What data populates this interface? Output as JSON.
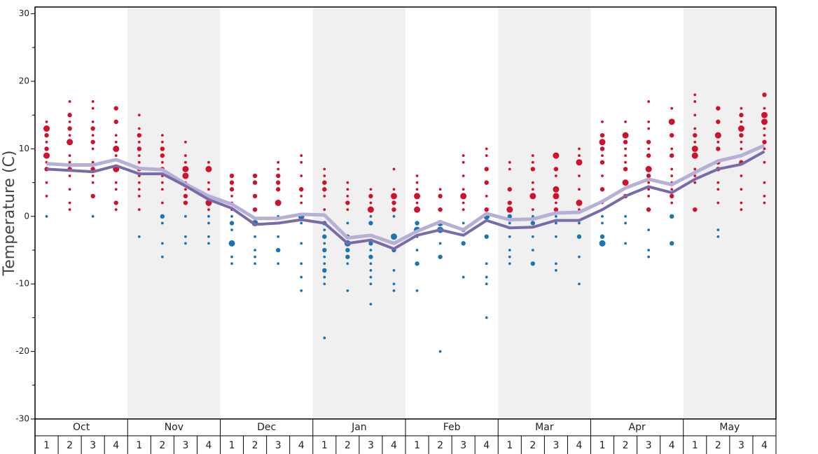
{
  "chart_data": {
    "type": "line",
    "y_label": "Temperature (C)",
    "ylim": [
      -30,
      31
    ],
    "yticks": [
      -30,
      -20,
      -10,
      0,
      10,
      20,
      30
    ],
    "yminor_ticks": [
      -25,
      -15,
      -5,
      5,
      15,
      25
    ],
    "months": [
      "Oct",
      "Nov",
      "Dec",
      "Jan",
      "Feb",
      "Mar",
      "Apr",
      "May"
    ],
    "weeks": [
      1,
      2,
      3,
      4
    ],
    "shaded_months": [
      "Nov",
      "Jan",
      "Mar",
      "May"
    ],
    "shade_color": "#f0f0f0",
    "above_color": "#d0112b",
    "below_color": "#1a75b0",
    "color_threshold": 0,
    "series": [
      {
        "color": "#b7b0d6",
        "values": [
          7.8,
          7.6,
          7.6,
          8.4,
          7.1,
          6.9,
          4.8,
          3.0,
          1.8,
          -0.3,
          -0.3,
          0.3,
          0.2,
          -3.2,
          -2.8,
          -4.0,
          -2.2,
          -0.8,
          -2.0,
          0.4,
          -0.5,
          -0.4,
          0.5,
          0.6,
          2.2,
          4.2,
          5.5,
          4.7,
          6.5,
          8.2,
          9.0,
          10.5
        ]
      },
      {
        "color": "#7a6aa8",
        "values": [
          7.0,
          6.8,
          6.6,
          7.5,
          6.3,
          6.3,
          4.5,
          2.5,
          1.2,
          -1.2,
          -1.0,
          -0.5,
          -1.0,
          -4.0,
          -3.5,
          -4.8,
          -2.8,
          -2.0,
          -2.8,
          -0.6,
          -1.7,
          -1.6,
          -0.6,
          -0.6,
          1.0,
          3.0,
          4.4,
          3.5,
          5.5,
          7.0,
          7.7,
          9.6
        ]
      }
    ],
    "dots": [
      {
        "temps": [
          14,
          13,
          12,
          11,
          10,
          9,
          8,
          7,
          5,
          3,
          0
        ],
        "counts": [
          1,
          3,
          2,
          1,
          2,
          3,
          1,
          2,
          1,
          1,
          1
        ]
      },
      {
        "temps": [
          17,
          15,
          14,
          13,
          12,
          11,
          9,
          8,
          7,
          6,
          4,
          2,
          1
        ],
        "counts": [
          1,
          2,
          1,
          2,
          1,
          3,
          1,
          1,
          2,
          1,
          1,
          1,
          1
        ]
      },
      {
        "temps": [
          17,
          16,
          14,
          13,
          12,
          11,
          10,
          8,
          7,
          6,
          5,
          3,
          0
        ],
        "counts": [
          1,
          1,
          1,
          2,
          1,
          2,
          1,
          1,
          2,
          1,
          1,
          2,
          1
        ]
      },
      {
        "temps": [
          16,
          14,
          12,
          11,
          10,
          9,
          7,
          5,
          4,
          2,
          1
        ],
        "counts": [
          2,
          2,
          1,
          1,
          3,
          1,
          3,
          1,
          1,
          2,
          1
        ]
      },
      {
        "temps": [
          15,
          13,
          12,
          11,
          10,
          9,
          8,
          7,
          6,
          5,
          4,
          3,
          1,
          -3
        ],
        "counts": [
          1,
          1,
          2,
          1,
          2,
          1,
          1,
          2,
          1,
          1,
          1,
          1,
          1,
          1
        ]
      },
      {
        "temps": [
          12,
          11,
          10,
          9,
          8,
          7,
          6,
          5,
          4,
          2,
          0,
          -1,
          -4,
          -6
        ],
        "counts": [
          1,
          1,
          2,
          2,
          1,
          2,
          1,
          1,
          1,
          1,
          2,
          1,
          1,
          1
        ]
      },
      {
        "temps": [
          11,
          9,
          8,
          7,
          6,
          5,
          4,
          3,
          2,
          0,
          -3,
          -4
        ],
        "counts": [
          1,
          1,
          1,
          3,
          3,
          1,
          1,
          2,
          2,
          1,
          1,
          1
        ]
      },
      {
        "temps": [
          8,
          7,
          5,
          4,
          3,
          2,
          1,
          0,
          -1,
          -3,
          -4
        ],
        "counts": [
          1,
          3,
          1,
          1,
          1,
          3,
          1,
          1,
          1,
          1,
          1
        ]
      },
      {
        "temps": [
          6,
          5,
          4,
          3,
          2,
          1,
          0,
          -1,
          -2,
          -4,
          -6,
          -7
        ],
        "counts": [
          2,
          2,
          2,
          1,
          1,
          1,
          1,
          2,
          1,
          3,
          1,
          1
        ]
      },
      {
        "temps": [
          6,
          5,
          3,
          1,
          -1,
          -3,
          -5,
          -6,
          -7
        ],
        "counts": [
          2,
          2,
          2,
          2,
          3,
          1,
          1,
          1,
          1
        ]
      },
      {
        "temps": [
          8,
          7,
          6,
          5,
          4,
          2,
          0,
          -1,
          -3,
          -5,
          -7
        ],
        "counts": [
          1,
          1,
          2,
          2,
          2,
          3,
          1,
          1,
          1,
          2,
          1
        ]
      },
      {
        "temps": [
          9,
          8,
          6,
          4,
          3,
          2,
          0,
          -1,
          -4,
          -7,
          -9,
          -11
        ],
        "counts": [
          1,
          1,
          1,
          2,
          1,
          1,
          3,
          1,
          1,
          1,
          1,
          1
        ]
      },
      {
        "temps": [
          7,
          6,
          5,
          4,
          3,
          1,
          -1,
          -2,
          -3,
          -4,
          -5,
          -6,
          -7,
          -8,
          -9,
          -10,
          -18
        ],
        "counts": [
          1,
          1,
          2,
          2,
          1,
          1,
          2,
          1,
          2,
          1,
          2,
          1,
          1,
          2,
          1,
          1,
          1
        ]
      },
      {
        "temps": [
          5,
          4,
          3,
          2,
          1,
          -1,
          -3,
          -4,
          -5,
          -6,
          -7,
          -11
        ],
        "counts": [
          1,
          1,
          1,
          2,
          1,
          1,
          2,
          3,
          2,
          2,
          1,
          1
        ]
      },
      {
        "temps": [
          4,
          3,
          2,
          1,
          0,
          -1,
          -4,
          -5,
          -6,
          -7,
          -8,
          -9,
          -10,
          -13
        ],
        "counts": [
          1,
          2,
          1,
          3,
          1,
          2,
          2,
          1,
          2,
          1,
          1,
          1,
          1,
          1
        ]
      },
      {
        "temps": [
          7,
          4,
          3,
          2,
          1,
          0,
          -3,
          -5,
          -8,
          -10,
          -11
        ],
        "counts": [
          1,
          1,
          3,
          2,
          2,
          1,
          3,
          2,
          1,
          1,
          1
        ]
      },
      {
        "temps": [
          6,
          5,
          4,
          3,
          2,
          1,
          -1,
          -2,
          -3,
          -5,
          -7,
          -11
        ],
        "counts": [
          1,
          1,
          1,
          3,
          1,
          3,
          2,
          3,
          1,
          1,
          2,
          1
        ]
      },
      {
        "temps": [
          4,
          3,
          1,
          -1,
          -2,
          -4,
          -6,
          -20
        ],
        "counts": [
          1,
          2,
          2,
          3,
          3,
          1,
          2,
          1
        ]
      },
      {
        "temps": [
          9,
          8,
          6,
          4,
          3,
          2,
          1,
          -1,
          -2,
          -4,
          -9
        ],
        "counts": [
          1,
          1,
          1,
          1,
          3,
          1,
          1,
          1,
          2,
          2,
          1
        ]
      },
      {
        "temps": [
          10,
          9,
          7,
          5,
          3,
          1,
          0,
          -3,
          -7,
          -9,
          -10,
          -15
        ],
        "counts": [
          1,
          1,
          2,
          2,
          1,
          2,
          3,
          2,
          1,
          1,
          1,
          1
        ]
      },
      {
        "temps": [
          8,
          7,
          4,
          2,
          1,
          0,
          -1,
          -3,
          -5,
          -6,
          -7
        ],
        "counts": [
          1,
          1,
          2,
          2,
          3,
          2,
          1,
          1,
          1,
          1,
          1
        ]
      },
      {
        "temps": [
          9,
          8,
          7,
          5,
          4,
          3,
          1,
          0,
          -1,
          -3,
          -5,
          -7
        ],
        "counts": [
          1,
          1,
          2,
          1,
          1,
          3,
          1,
          1,
          2,
          1,
          1,
          2
        ]
      },
      {
        "temps": [
          9,
          7,
          6,
          4,
          3,
          2,
          1,
          0,
          -1,
          -3,
          -7,
          -8
        ],
        "counts": [
          3,
          2,
          1,
          3,
          3,
          1,
          2,
          1,
          1,
          1,
          1,
          1
        ]
      },
      {
        "temps": [
          10,
          9,
          8,
          6,
          4,
          2,
          1,
          -1,
          -3,
          -6,
          -10
        ],
        "counts": [
          1,
          1,
          3,
          1,
          1,
          3,
          1,
          1,
          2,
          1,
          1
        ]
      },
      {
        "temps": [
          14,
          12,
          11,
          10,
          9,
          8,
          6,
          4,
          2,
          0,
          -1,
          -3,
          -4
        ],
        "counts": [
          1,
          2,
          3,
          2,
          1,
          2,
          1,
          2,
          1,
          1,
          1,
          2,
          3
        ]
      },
      {
        "temps": [
          14,
          12,
          11,
          10,
          9,
          8,
          7,
          5,
          3,
          0,
          -1,
          -4
        ],
        "counts": [
          1,
          3,
          2,
          1,
          1,
          1,
          2,
          3,
          2,
          1,
          1,
          1
        ]
      },
      {
        "temps": [
          17,
          14,
          13,
          11,
          10,
          9,
          7,
          6,
          5,
          4,
          3,
          1,
          -2,
          -5,
          -6
        ],
        "counts": [
          1,
          1,
          1,
          2,
          1,
          2,
          3,
          2,
          1,
          1,
          1,
          2,
          1,
          1,
          1
        ]
      },
      {
        "temps": [
          16,
          14,
          12,
          10,
          9,
          7,
          6,
          5,
          4,
          3,
          2,
          0,
          -4
        ],
        "counts": [
          1,
          3,
          2,
          1,
          2,
          1,
          1,
          1,
          1,
          2,
          1,
          2,
          2
        ]
      },
      {
        "temps": [
          18,
          17,
          15,
          13,
          12,
          11,
          10,
          9,
          7,
          6,
          5,
          1
        ],
        "counts": [
          1,
          1,
          1,
          1,
          2,
          1,
          3,
          3,
          1,
          1,
          1,
          2
        ]
      },
      {
        "temps": [
          16,
          14,
          12,
          11,
          10,
          8,
          7,
          5,
          4,
          2,
          -2,
          -3
        ],
        "counts": [
          2,
          2,
          3,
          1,
          2,
          2,
          2,
          1,
          1,
          1,
          1,
          1
        ]
      },
      {
        "temps": [
          16,
          15,
          14,
          13,
          12,
          11,
          10,
          8,
          6,
          4,
          2,
          1
        ],
        "counts": [
          1,
          2,
          1,
          3,
          2,
          1,
          1,
          2,
          1,
          1,
          1,
          1
        ]
      },
      {
        "temps": [
          18,
          16,
          15,
          14,
          13,
          12,
          11,
          10,
          8,
          5,
          3,
          2
        ],
        "counts": [
          2,
          1,
          3,
          3,
          1,
          1,
          2,
          1,
          1,
          1,
          1,
          1
        ]
      }
    ]
  }
}
